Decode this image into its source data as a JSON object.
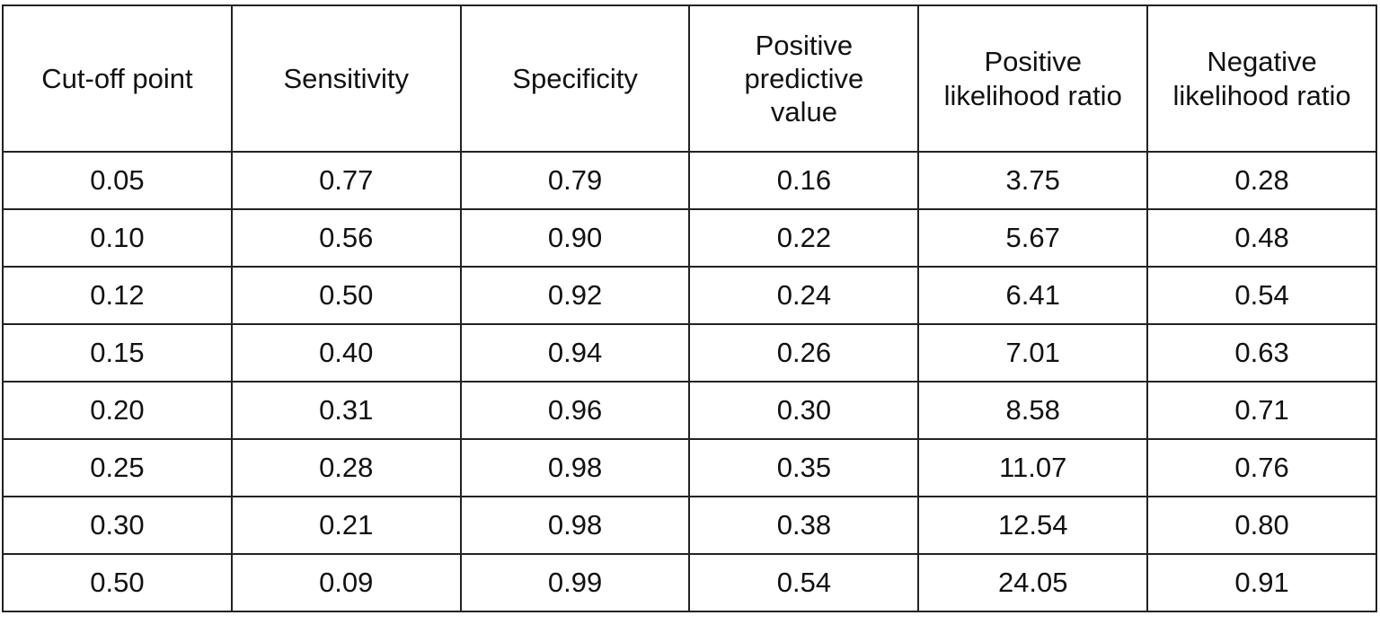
{
  "table": {
    "header": [
      "Cut-off point",
      "Sensitivity",
      "Specificity",
      "Positive predictive value",
      "Positive likelihood ratio",
      "Negative likelihood ratio"
    ],
    "rows": [
      [
        "0.05",
        "0.77",
        "0.79",
        "0.16",
        "3.75",
        "0.28"
      ],
      [
        "0.10",
        "0.56",
        "0.90",
        "0.22",
        "5.67",
        "0.48"
      ],
      [
        "0.12",
        "0.50",
        "0.92",
        "0.24",
        "6.41",
        "0.54"
      ],
      [
        "0.15",
        "0.40",
        "0.94",
        "0.26",
        "7.01",
        "0.63"
      ],
      [
        "0.20",
        "0.31",
        "0.96",
        "0.30",
        "8.58",
        "0.71"
      ],
      [
        "0.25",
        "0.28",
        "0.98",
        "0.35",
        "11.07",
        "0.76"
      ],
      [
        "0.30",
        "0.21",
        "0.98",
        "0.38",
        "12.54",
        "0.80"
      ],
      [
        "0.50",
        "0.09",
        "0.99",
        "0.54",
        "24.05",
        "0.91"
      ]
    ]
  }
}
